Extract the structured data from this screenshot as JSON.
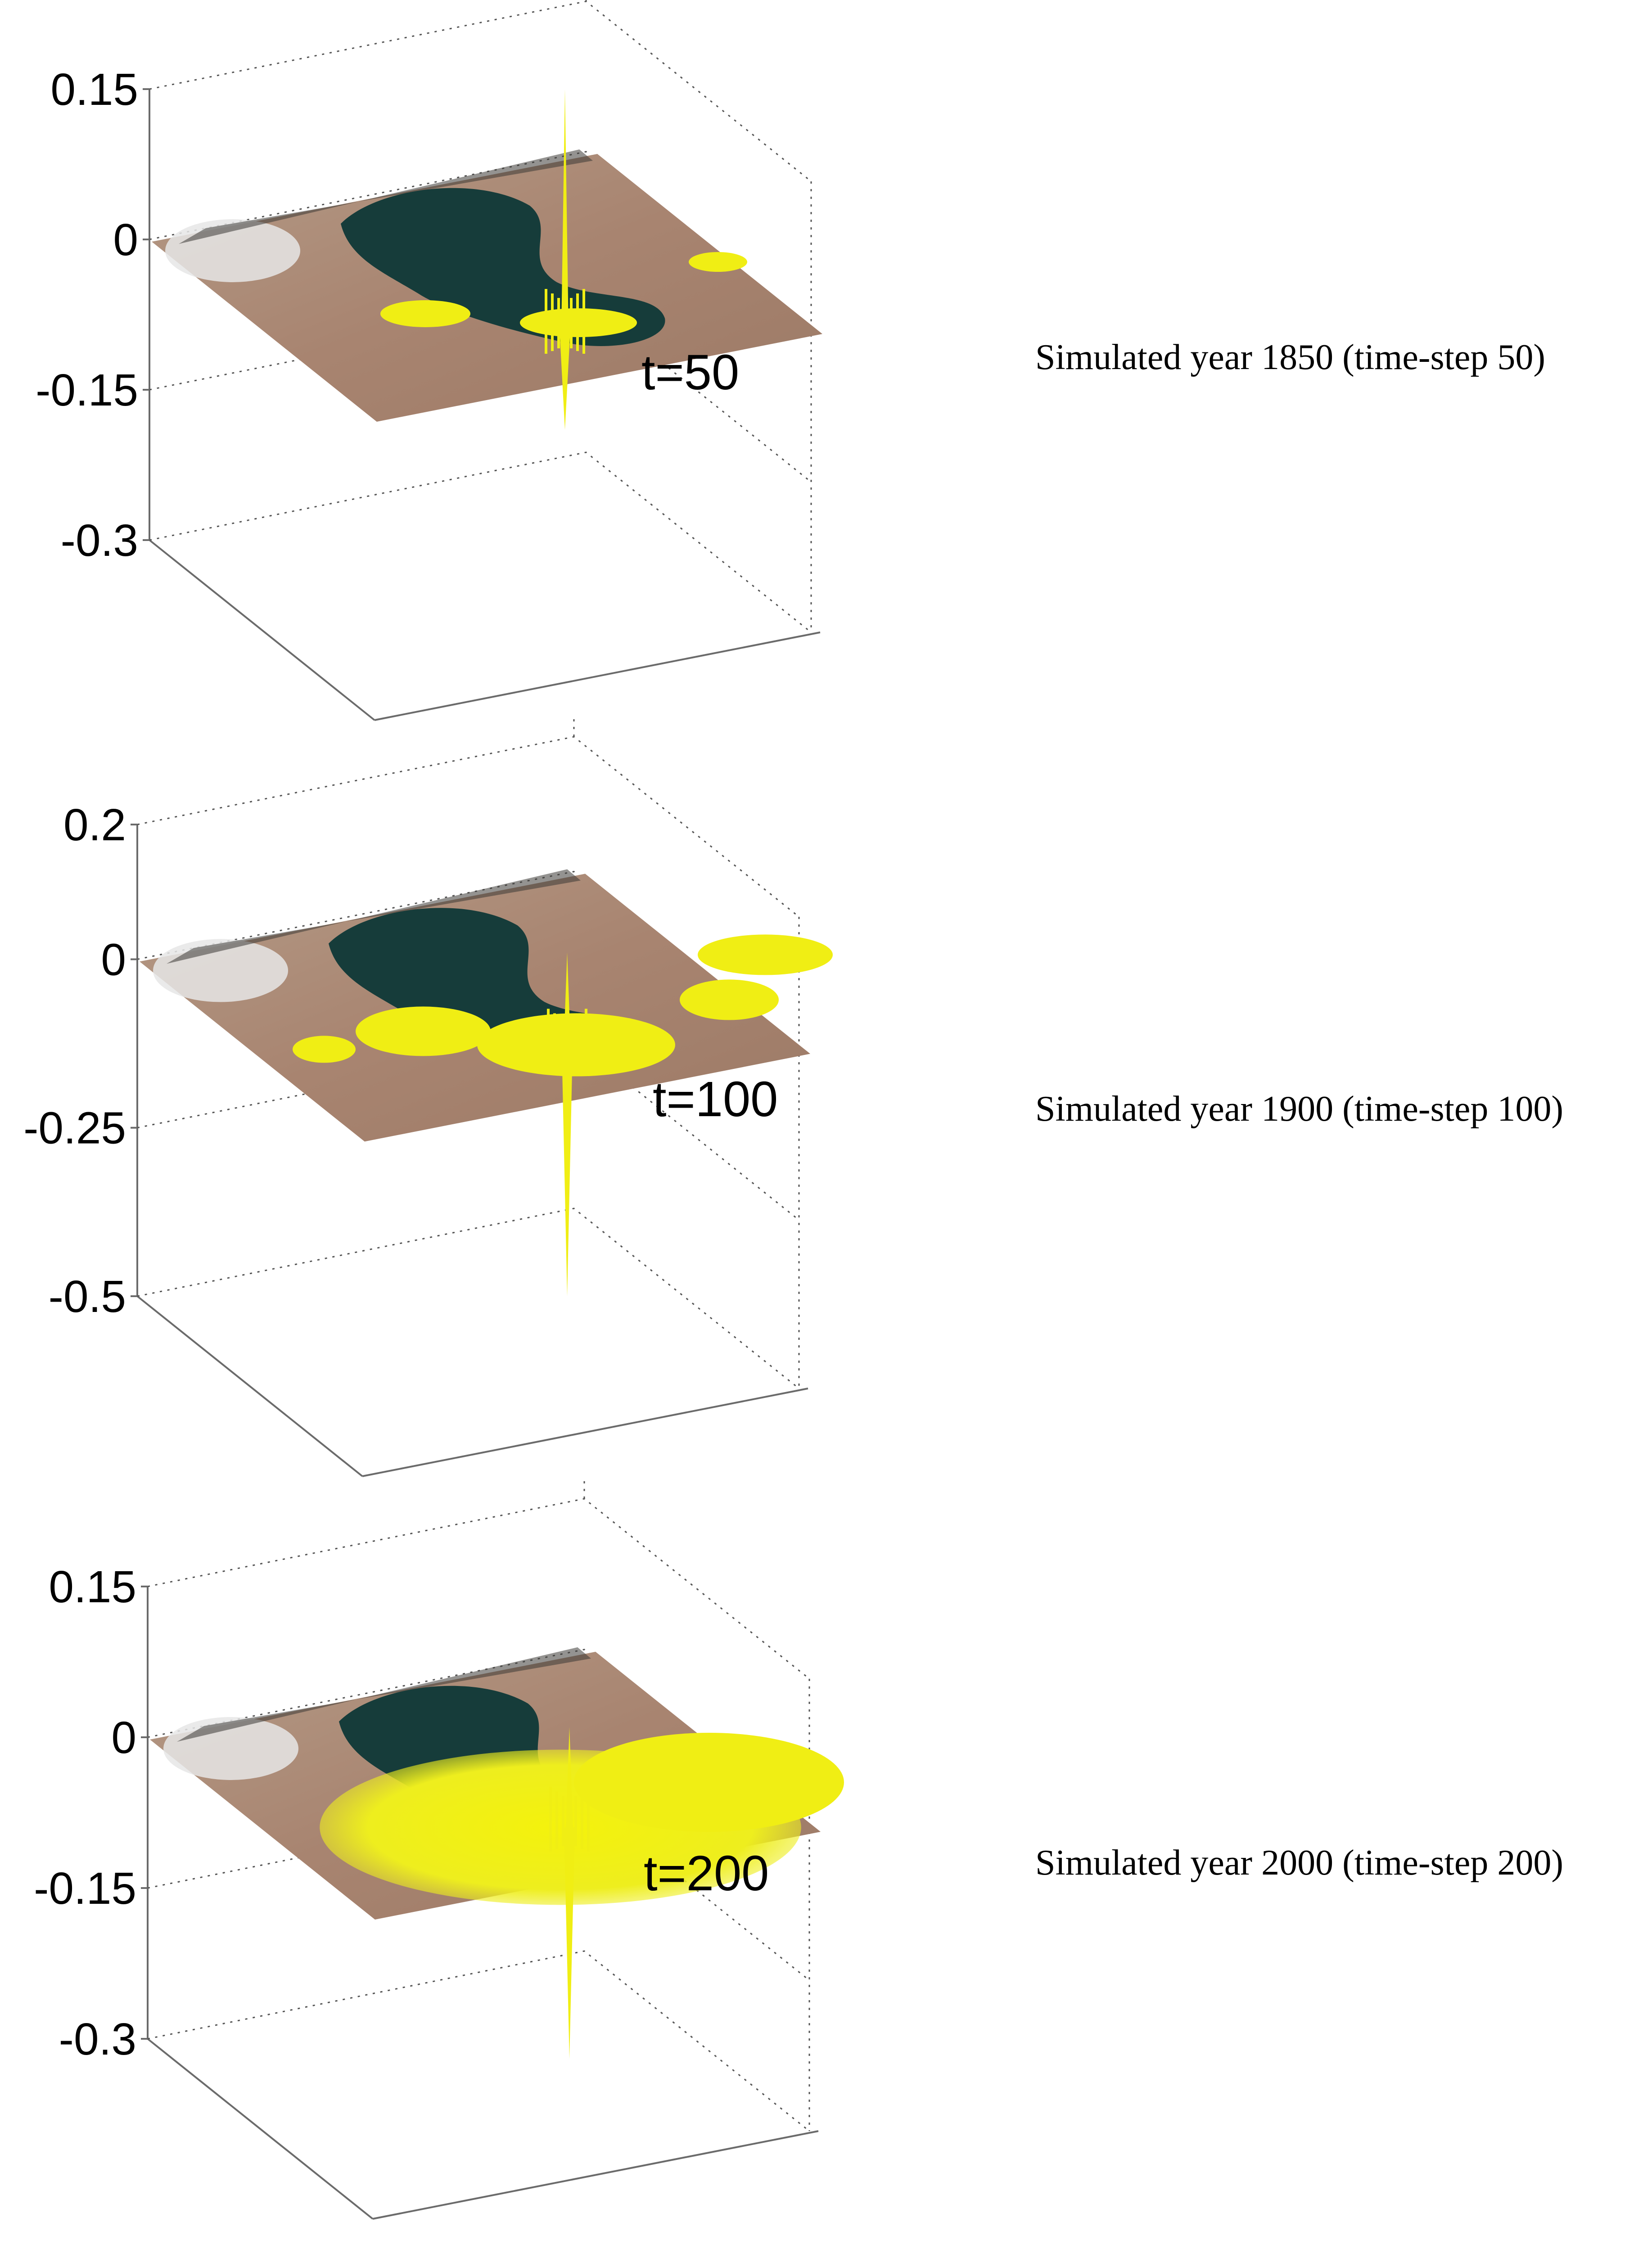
{
  "chart_data": [
    {
      "type": "surface-3d",
      "surface_label": "t=50",
      "caption": "Simulated year 1850 (time-step 50)",
      "zticks": [
        "0.15",
        "0",
        "-0.15",
        "-0.3"
      ],
      "zvalues": [
        0.15,
        0,
        -0.15,
        -0.3
      ],
      "zlim": [
        -0.3,
        0.15
      ],
      "peak": 0.15,
      "trough": -0.19,
      "plume_extent": "small",
      "grid": "dotted"
    },
    {
      "type": "surface-3d",
      "surface_label": "t=100",
      "caption": "Simulated year 1900 (time-step 100)",
      "zticks": [
        "0.2",
        "0",
        "-0.25",
        "-0.5"
      ],
      "zvalues": [
        0.2,
        0,
        -0.25,
        -0.5
      ],
      "zlim": [
        -0.5,
        0.2
      ],
      "peak": 0.01,
      "trough": -0.5,
      "plume_extent": "medium",
      "grid": "dotted"
    },
    {
      "type": "surface-3d",
      "surface_label": "t=200",
      "caption": "Simulated year 2000 (time-step 200)",
      "zticks": [
        "0.15",
        "0",
        "-0.15",
        "-0.3"
      ],
      "zvalues": [
        0.15,
        0,
        -0.15,
        -0.3
      ],
      "zlim": [
        -0.3,
        0.15
      ],
      "peak": 0.01,
      "trough": -0.32,
      "plume_extent": "large",
      "grid": "dotted"
    }
  ],
  "colors": {
    "terrain": "#a88972",
    "water": "#163c3a",
    "plume": "#f0ee14",
    "snow": "#e6e6e6"
  }
}
